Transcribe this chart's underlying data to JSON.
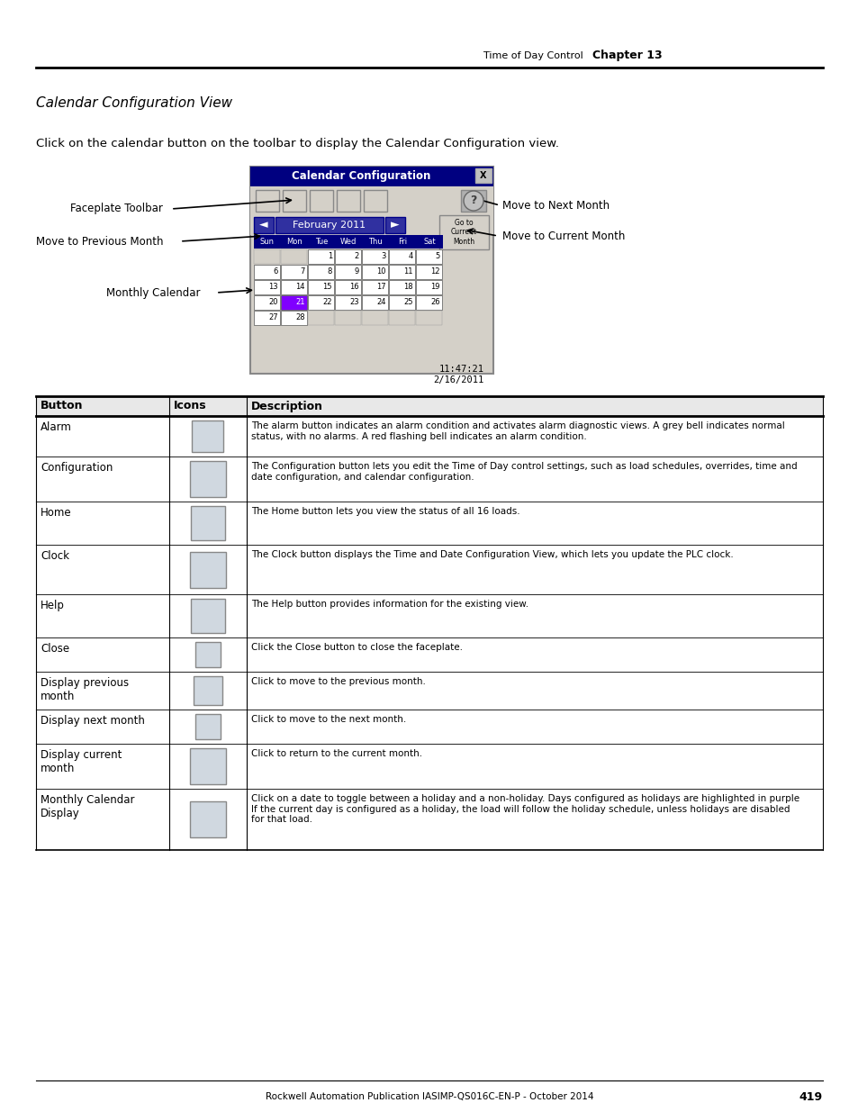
{
  "page_title_right1": "Time of Day Control",
  "chapter": "Chapter 13",
  "section_title": "Calendar Configuration View",
  "intro_text": "Click on the calendar button on the toolbar to display the Calendar Configuration view.",
  "label_faceplate": "Faceplate Toolbar",
  "label_prev": "Move to Previous Month",
  "label_monthly": "Monthly Calendar",
  "label_next": "Move to Next Month",
  "label_current": "Move to Current Month",
  "cal_month": "February 2011",
  "cal_timestamp": "11:47:21\n2/16/2011",
  "cal_days": [
    "Sun",
    "Mon",
    "Tue",
    "Wed",
    "Thu",
    "Fri",
    "Sat"
  ],
  "cal_data": [
    [
      null,
      null,
      1,
      2,
      3,
      4,
      5
    ],
    [
      6,
      7,
      8,
      9,
      10,
      11,
      12
    ],
    [
      13,
      14,
      15,
      16,
      17,
      18,
      19
    ],
    [
      20,
      21,
      22,
      23,
      24,
      25,
      26
    ],
    [
      27,
      28,
      null,
      null,
      null,
      null,
      null
    ]
  ],
  "cal_highlight": [
    21
  ],
  "table_rows": [
    {
      "button": "Alarm",
      "desc": "The alarm button indicates an alarm condition and activates alarm diagnostic views. A grey bell indicates normal\nstatus, with no alarms. A red flashing bell indicates an alarm condition.",
      "rh": 45
    },
    {
      "button": "Configuration",
      "desc": "The Configuration button lets you edit the Time of Day control settings, such as load schedules, overrides, time and\ndate configuration, and calendar configuration.",
      "rh": 50
    },
    {
      "button": "Home",
      "desc": "The Home button lets you view the status of all 16 loads.",
      "rh": 48
    },
    {
      "button": "Clock",
      "desc": "The Clock button displays the Time and Date Configuration View, which lets you update the PLC clock.",
      "rh": 55
    },
    {
      "button": "Help",
      "desc": "The Help button provides information for the existing view.",
      "rh": 48
    },
    {
      "button": "Close",
      "desc": "Click the Close button to close the faceplate.",
      "rh": 38
    },
    {
      "button": "Display previous\nmonth",
      "desc": "Click to move to the previous month.",
      "rh": 42
    },
    {
      "button": "Display next month",
      "desc": "Click to move to the next month.",
      "rh": 38
    },
    {
      "button": "Display current\nmonth",
      "desc": "Click to return to the current month.",
      "rh": 50
    },
    {
      "button": "Monthly Calendar\nDisplay",
      "desc": "Click on a date to toggle between a holiday and a non-holiday. Days configured as holidays are highlighted in purple\nIf the current day is configured as a holiday, the load will follow the holiday schedule, unless holidays are disabled\nfor that load.",
      "rh": 68
    }
  ],
  "footer_text": "Rockwell Automation Publication IASIMP-QS016C-EN-P - October 2014",
  "page_number": "419",
  "bg_color": "#ffffff"
}
